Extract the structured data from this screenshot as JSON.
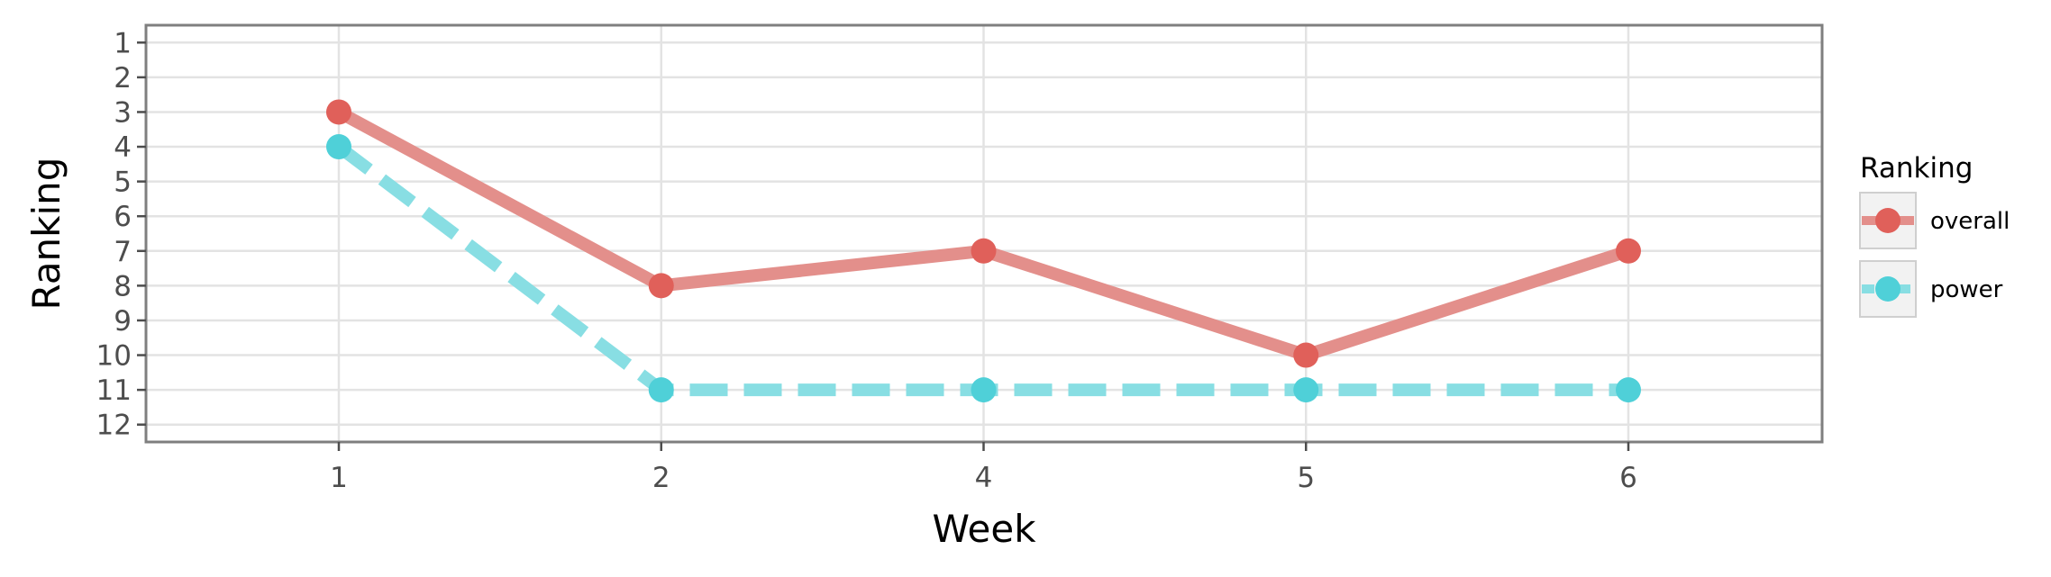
{
  "chart_data": {
    "type": "line",
    "xlabel": "Week",
    "ylabel": "Ranking",
    "categories": [
      "1",
      "2",
      "4",
      "5",
      "6"
    ],
    "y_ticks": [
      1,
      2,
      3,
      4,
      5,
      6,
      7,
      8,
      9,
      10,
      11,
      12
    ],
    "ylim": [
      12.5,
      0.5
    ],
    "y_reversed": true,
    "grid": true,
    "legend": {
      "title": "Ranking",
      "placement": "right"
    },
    "series": [
      {
        "name": "overall",
        "values": [
          3,
          8,
          7,
          10,
          7
        ],
        "color": "#e0605a",
        "line_color": "#e38f8b",
        "dash": "solid"
      },
      {
        "name": "power",
        "values": [
          4,
          11,
          11,
          11,
          11
        ],
        "color": "#4fd0d8",
        "line_color": "#88dee3",
        "dash": "dashed"
      }
    ]
  }
}
